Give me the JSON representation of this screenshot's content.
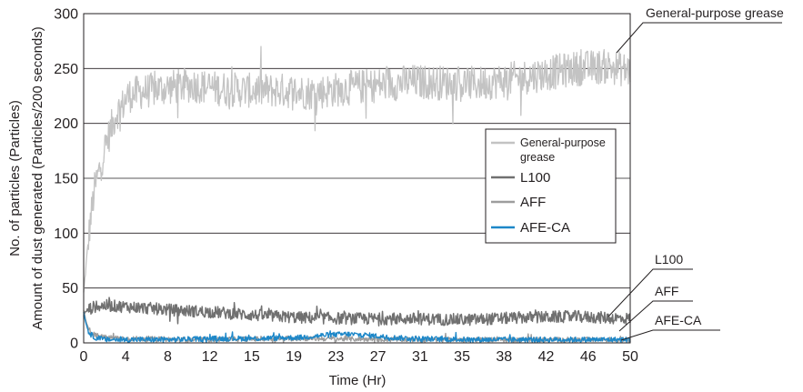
{
  "chart_data": {
    "type": "line",
    "title": "",
    "xlabel": "Time (Hr)",
    "ylabel_lines": [
      "No. of particles (Particles)",
      "Amount of dust generated (Particles/200 seconds)"
    ],
    "x_ticks": [
      "0",
      "4",
      "8",
      "12",
      "15",
      "19",
      "23",
      "27",
      "31",
      "35",
      "38",
      "42",
      "46",
      "50"
    ],
    "y_ticks": [
      "0",
      "50",
      "100",
      "150",
      "200",
      "250",
      "300"
    ],
    "xlim": [
      0,
      50
    ],
    "ylim": [
      0,
      300
    ],
    "grid": "horizontal",
    "legend_position": "center-right",
    "series": [
      {
        "name": "General-purpose grease",
        "legend_lines": [
          "General-purpose",
          "grease"
        ],
        "color": "#c3c3c3",
        "x": [
          0,
          0.3,
          0.6,
          1,
          1.5,
          2,
          2.5,
          3,
          3.5,
          4,
          5,
          6,
          8,
          10,
          12,
          15,
          18,
          21,
          24,
          27,
          30,
          33,
          36,
          39,
          42,
          45,
          48,
          50
        ],
        "y": [
          45,
          80,
          110,
          140,
          160,
          180,
          195,
          210,
          215,
          225,
          228,
          230,
          233,
          235,
          232,
          230,
          230,
          228,
          232,
          235,
          238,
          237,
          236,
          240,
          245,
          250,
          252,
          248
        ]
      },
      {
        "name": "L100",
        "color": "#707070",
        "x": [
          0,
          0.3,
          1,
          2,
          4,
          8,
          12,
          16,
          20,
          25,
          30,
          35,
          40,
          45,
          50
        ],
        "y": [
          25,
          30,
          33,
          34,
          33,
          30,
          28,
          25,
          23,
          22,
          22,
          21,
          23,
          24,
          22
        ]
      },
      {
        "name": "AFF",
        "color": "#9d9d9d",
        "x": [
          0,
          0.2,
          0.5,
          1,
          2,
          4,
          10,
          20,
          30,
          40,
          50
        ],
        "y": [
          30,
          20,
          12,
          7,
          5,
          4,
          3,
          4,
          3,
          3,
          3
        ]
      },
      {
        "name": "AFE-CA",
        "color": "#1d87c8",
        "x": [
          0,
          0.2,
          0.5,
          1,
          2,
          4,
          8,
          12,
          16,
          20,
          22,
          24,
          26,
          28,
          30,
          35,
          40,
          45,
          50
        ],
        "y": [
          28,
          18,
          9,
          5,
          3,
          3,
          3,
          4,
          4,
          5,
          7,
          8,
          7,
          5,
          4,
          3,
          3,
          3,
          3
        ]
      }
    ],
    "callouts": [
      "General-purpose grease",
      "L100",
      "AFF",
      "AFE-CA"
    ]
  }
}
